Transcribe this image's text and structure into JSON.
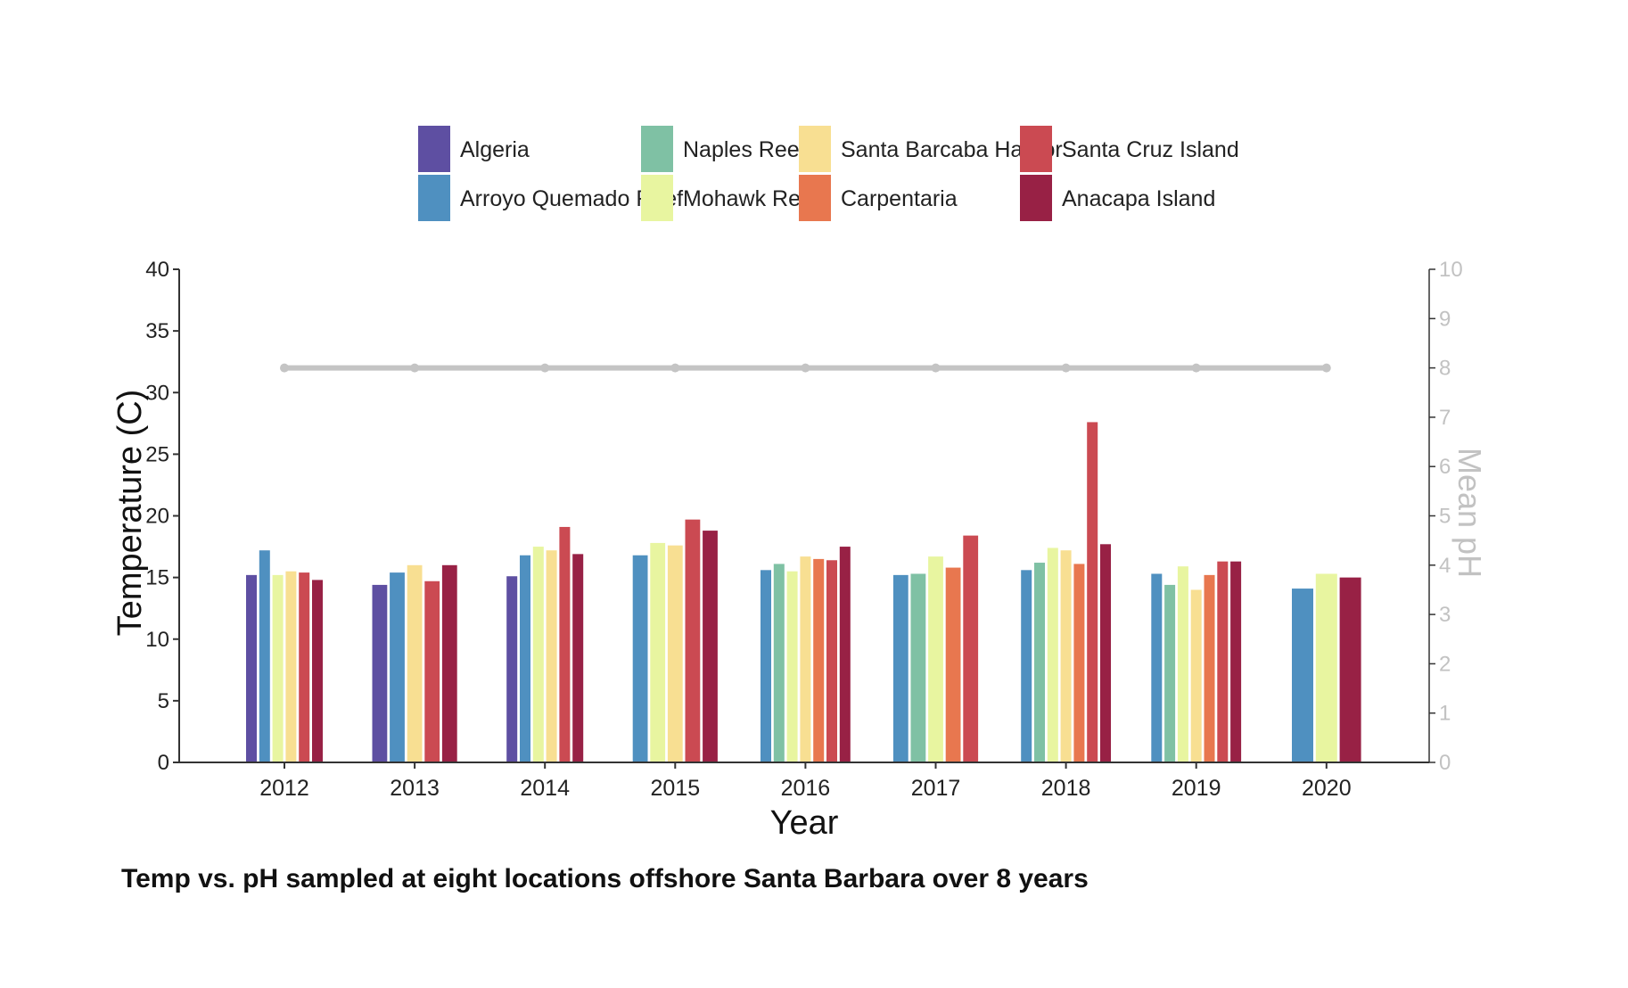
{
  "chart_data": {
    "type": "bar",
    "caption": "Temp vs. pH sampled at eight locations offshore Santa Barbara over 8 years",
    "xlabel": "Year",
    "ylabel": "Temperature (C)",
    "y2label": "Mean pH",
    "ylim": [
      0,
      40
    ],
    "y2lim": [
      0,
      10
    ],
    "yticks": [
      "0",
      "5",
      "10",
      "15",
      "20",
      "25",
      "30",
      "35",
      "40"
    ],
    "y2ticks": [
      "0",
      "1",
      "2",
      "3",
      "4",
      "5",
      "6",
      "7",
      "8",
      "9",
      "10"
    ],
    "grid": false,
    "legend_position": "top",
    "categories": [
      "2012",
      "2013",
      "2014",
      "2015",
      "2016",
      "2017",
      "2018",
      "2019",
      "2020"
    ],
    "series": [
      {
        "name": "Algeria",
        "color": "#5e4fa2",
        "values": [
          15.2,
          14.4,
          15.1,
          null,
          null,
          null,
          null,
          null,
          null
        ]
      },
      {
        "name": "Arroyo Quemado Reef",
        "color": "#4f90c0",
        "values": [
          17.2,
          15.4,
          16.8,
          16.8,
          15.6,
          15.2,
          15.6,
          15.3,
          14.1
        ]
      },
      {
        "name": "Naples Reef",
        "color": "#7fc1a4",
        "values": [
          null,
          null,
          null,
          null,
          16.1,
          15.3,
          16.2,
          14.4,
          null
        ]
      },
      {
        "name": "Mohawk Reef",
        "color": "#e8f5a0",
        "values": [
          15.2,
          null,
          17.5,
          17.8,
          15.5,
          16.7,
          17.4,
          15.9,
          15.3
        ]
      },
      {
        "name": "Santa Barcaba Harbor",
        "color": "#f8df92",
        "values": [
          15.5,
          16.0,
          17.2,
          17.6,
          16.7,
          null,
          17.2,
          14.0,
          null
        ]
      },
      {
        "name": "Carpentaria",
        "color": "#e8774f",
        "values": [
          null,
          null,
          null,
          null,
          16.5,
          15.8,
          16.1,
          15.2,
          null
        ]
      },
      {
        "name": "Santa Cruz Island",
        "color": "#cb4a52",
        "values": [
          15.4,
          14.7,
          19.1,
          19.7,
          16.4,
          18.4,
          27.6,
          16.3,
          null
        ]
      },
      {
        "name": "Anacapa Island",
        "color": "#982145",
        "values": [
          14.8,
          16.0,
          16.9,
          18.8,
          17.5,
          null,
          17.7,
          16.3,
          15.0
        ]
      }
    ],
    "ph_line": {
      "color": "#c4c4c4",
      "values": [
        8,
        8,
        8,
        8,
        8,
        8,
        8,
        8,
        8
      ]
    }
  }
}
